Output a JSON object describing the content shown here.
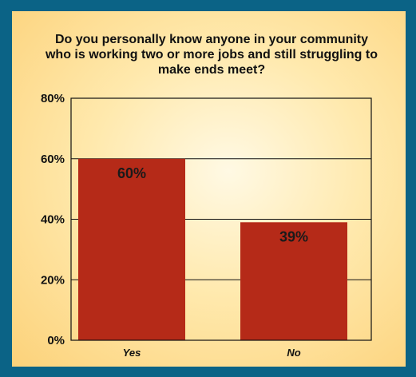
{
  "chart_data": {
    "type": "bar",
    "title": "Do you personally know anyone in your community who is working two or more jobs and still struggling to make ends meet?",
    "categories": [
      "Yes",
      "No"
    ],
    "values": [
      60,
      39
    ],
    "value_labels": [
      "60%",
      "39%"
    ],
    "ylim": [
      0,
      80
    ],
    "yticks": [
      "0%",
      "20%",
      "40%",
      "60%",
      "80%"
    ],
    "grid": true,
    "colors": {
      "bar": "#b52a18",
      "grid": "#111111",
      "background_frame": "#0b6386"
    }
  }
}
